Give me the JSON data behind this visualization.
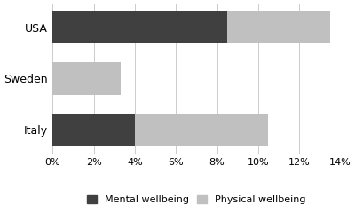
{
  "categories": [
    "Italy",
    "Sweden",
    "USA"
  ],
  "mental_wellbeing": [
    4.0,
    0.0,
    8.5
  ],
  "physical_wellbeing": [
    6.5,
    3.3,
    5.0
  ],
  "mental_color": "#404040",
  "physical_color": "#c0c0c0",
  "xlim": [
    0,
    14
  ],
  "xticks": [
    0,
    2,
    4,
    6,
    8,
    10,
    12,
    14
  ],
  "xtick_labels": [
    "0%",
    "2%",
    "4%",
    "6%",
    "8%",
    "10%",
    "12%",
    "14%"
  ],
  "legend_labels": [
    "Mental wellbeing",
    "Physical wellbeing"
  ],
  "background_color": "#ffffff",
  "bar_height": 0.65,
  "tick_fontsize": 8,
  "legend_fontsize": 8
}
